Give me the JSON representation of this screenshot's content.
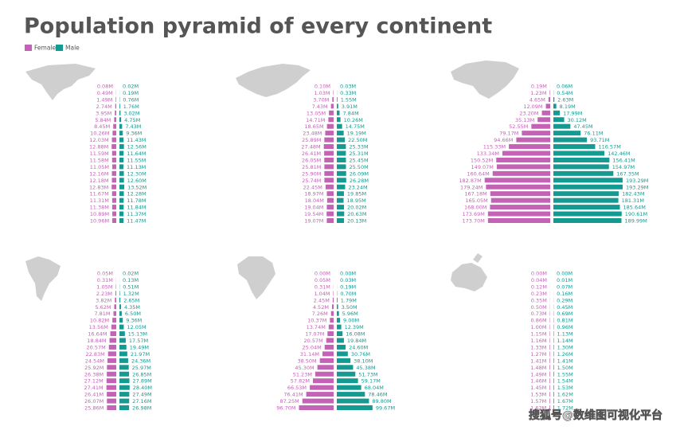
{
  "title": "Population pyramid of every continent",
  "watermark": "搜狐号@数维图可视化平台",
  "chart_data": [
    {
      "type": "pyramid",
      "xlim": [
        0,
        200
      ],
      "series": [
        {
          "name": "Female",
          "color": "#c462b6",
          "values": [
            0.08,
            0.49,
            1.49,
            2.74,
            3.95,
            5.84,
            8.45,
            10.26,
            12.03,
            12.88,
            11.59,
            11.58,
            11.05,
            12.16,
            12.18,
            12.83,
            11.67,
            11.31,
            11.38,
            10.89,
            10.96
          ],
          "value_labels": [
            "0.08M",
            "0.49M",
            "1.49M",
            "2.74M",
            "3.95M",
            "5.84M",
            "8.45M",
            "10.26M",
            "12.03M",
            "12.88M",
            "11.59M",
            "11.58M",
            "11.05M",
            "12.16M",
            "12.18M",
            "12.83M",
            "11.67M",
            "11.31M",
            "11.38M",
            "10.89M",
            "10.96M"
          ]
        },
        {
          "name": "Male",
          "color": "#159a92",
          "values": [
            0.02,
            0.19,
            0.76,
            1.76,
            3.02,
            4.75,
            7.43,
            9.36,
            11.43,
            12.56,
            11.64,
            11.55,
            11.13,
            12.3,
            12.6,
            13.52,
            12.28,
            11.78,
            11.84,
            11.37,
            11.47
          ],
          "value_labels": [
            "0.02M",
            "0.19M",
            "0.76M",
            "1.76M",
            "3.02M",
            "4.75M",
            "7.43M",
            "9.36M",
            "11.43M",
            "12.56M",
            "11.64M",
            "11.55M",
            "11.13M",
            "12.30M",
            "12.60M",
            "13.52M",
            "12.28M",
            "11.78M",
            "11.84M",
            "11.37M",
            "11.47M"
          ]
        }
      ]
    },
    {
      "type": "pyramid",
      "xlim": [
        0,
        200
      ],
      "series": [
        {
          "name": "Female",
          "color": "#c462b6",
          "values": [
            0.1,
            1.03,
            3.7,
            7.43,
            13.05,
            14.71,
            18.65,
            23.48,
            25.89,
            27.48,
            26.41,
            26.05,
            25.81,
            25.9,
            25.74,
            22.45,
            18.97,
            18.04,
            19.04,
            19.54,
            19.07
          ],
          "value_labels": [
            "0.10M",
            "1.03M",
            "3.70M",
            "7.43M",
            "13.05M",
            "14.71M",
            "18.65M",
            "23.48M",
            "25.89M",
            "27.48M",
            "26.41M",
            "26.05M",
            "25.81M",
            "25.90M",
            "25.74M",
            "22.45M",
            "18.97M",
            "18.04M",
            "19.04M",
            "19.54M",
            "19.07M"
          ]
        },
        {
          "name": "Male",
          "color": "#159a92",
          "values": [
            0.03,
            0.33,
            1.55,
            3.91,
            7.84,
            10.26,
            14.75,
            19.19,
            22.5,
            25.33,
            25.31,
            25.45,
            25.5,
            26.09,
            26.28,
            23.24,
            19.85,
            18.95,
            20.02,
            20.63,
            20.13
          ],
          "value_labels": [
            "0.03M",
            "0.33M",
            "1.55M",
            "3.91M",
            "7.84M",
            "10.26M",
            "14.75M",
            "19.19M",
            "22.50M",
            "25.33M",
            "25.31M",
            "25.45M",
            "25.50M",
            "26.09M",
            "26.28M",
            "23.24M",
            "19.85M",
            "18.95M",
            "20.02M",
            "20.63M",
            "20.13M"
          ]
        }
      ]
    },
    {
      "type": "pyramid",
      "xlim": [
        0,
        200
      ],
      "series": [
        {
          "name": "Female",
          "color": "#c462b6",
          "values": [
            0.19,
            1.23,
            4.65,
            12.09,
            23.2,
            35.13,
            52.55,
            79.17,
            94.66,
            115.33,
            133.34,
            150.52,
            149.07,
            160.64,
            182.87,
            179.24,
            167.18,
            165.05,
            168.0,
            173.69,
            173.7
          ],
          "value_labels": [
            "0.19M",
            "1.23M",
            "4.65M",
            "12.09M",
            "23.20M",
            "35.13M",
            "52.55M",
            "79.17M",
            "94.66M",
            "115.33M",
            "133.34M",
            "150.52M",
            "149.07M",
            "160.64M",
            "182.87M",
            "179.24M",
            "167.18M",
            "165.05M",
            "168.00M",
            "173.69M",
            "173.70M"
          ]
        },
        {
          "name": "Male",
          "color": "#159a92",
          "values": [
            0.06,
            0.54,
            2.63,
            8.19,
            17.99,
            30.12,
            47.45,
            76.11,
            93.71,
            116.57,
            142.46,
            156.41,
            154.97,
            167.35,
            193.29,
            193.29,
            182.43,
            181.31,
            185.64,
            190.61,
            189.99
          ],
          "value_labels": [
            "0.06M",
            "0.54M",
            "2.63M",
            "8.19M",
            "17.99M",
            "30.12M",
            "47.45M",
            "76.11M",
            "93.71M",
            "116.57M",
            "142.46M",
            "156.41M",
            "154.97M",
            "167.35M",
            "193.29M",
            "193.29M",
            "182.43M",
            "181.31M",
            "185.64M",
            "190.61M",
            "189.99M"
          ]
        }
      ]
    },
    {
      "type": "pyramid",
      "xlim": [
        0,
        200
      ],
      "series": [
        {
          "name": "Female",
          "color": "#c462b6",
          "values": [
            0.05,
            0.31,
            1.05,
            2.23,
            3.82,
            5.62,
            7.81,
            10.82,
            13.56,
            16.64,
            18.84,
            20.57,
            22.83,
            24.54,
            25.92,
            26.38,
            27.12,
            27.41,
            26.41,
            26.07,
            25.86
          ],
          "value_labels": [
            "0.05M",
            "0.31M",
            "1.05M",
            "2.23M",
            "3.82M",
            "5.62M",
            "7.81M",
            "10.82M",
            "13.56M",
            "16.64M",
            "18.84M",
            "20.57M",
            "22.83M",
            "24.54M",
            "25.92M",
            "26.38M",
            "27.12M",
            "27.41M",
            "26.41M",
            "26.07M",
            "25.86M"
          ]
        },
        {
          "name": "Male",
          "color": "#159a92",
          "values": [
            0.02,
            0.13,
            0.51,
            1.32,
            2.65,
            4.35,
            6.5,
            9.36,
            12.05,
            15.13,
            17.57,
            19.49,
            21.97,
            24.36,
            25.97,
            26.85,
            27.89,
            28.4,
            27.49,
            27.16,
            26.98
          ],
          "value_labels": [
            "0.02M",
            "0.13M",
            "0.51M",
            "1.32M",
            "2.65M",
            "4.35M",
            "6.50M",
            "9.36M",
            "12.05M",
            "15.13M",
            "17.57M",
            "19.49M",
            "21.97M",
            "24.36M",
            "25.97M",
            "26.85M",
            "27.89M",
            "28.40M",
            "27.49M",
            "27.16M",
            "26.98M"
          ]
        }
      ]
    },
    {
      "type": "pyramid",
      "xlim": [
        0,
        200
      ],
      "series": [
        {
          "name": "Female",
          "color": "#c462b6",
          "values": [
            0.0,
            0.05,
            0.31,
            1.04,
            2.45,
            4.52,
            7.26,
            10.37,
            13.74,
            17.07,
            20.57,
            25.04,
            31.14,
            38.5,
            45.3,
            51.23,
            57.82,
            66.53,
            76.41,
            87.25,
            96.7
          ],
          "value_labels": [
            "0.00M",
            "0.05M",
            "0.31M",
            "1.04M",
            "2.45M",
            "4.52M",
            "7.26M",
            "10.37M",
            "13.74M",
            "17.07M",
            "20.57M",
            "25.04M",
            "31.14M",
            "38.50M",
            "45.30M",
            "51.23M",
            "57.82M",
            "66.53M",
            "76.41M",
            "87.25M",
            "96.70M"
          ]
        },
        {
          "name": "Male",
          "color": "#159a92",
          "values": [
            0.0,
            0.03,
            0.19,
            0.7,
            1.79,
            3.5,
            5.96,
            9.0,
            12.39,
            16.08,
            19.84,
            24.6,
            30.76,
            38.1,
            45.38,
            51.73,
            59.17,
            68.04,
            78.46,
            89.8,
            99.67
          ],
          "value_labels": [
            "0.00M",
            "0.03M",
            "0.19M",
            "0.70M",
            "1.79M",
            "3.50M",
            "5.96M",
            "9.00M",
            "12.39M",
            "16.08M",
            "19.84M",
            "24.60M",
            "30.76M",
            "38.10M",
            "45.38M",
            "51.73M",
            "59.17M",
            "68.04M",
            "78.46M",
            "89.80M",
            "99.67M"
          ]
        }
      ]
    },
    {
      "type": "pyramid",
      "xlim": [
        0,
        200
      ],
      "series": [
        {
          "name": "Female",
          "color": "#c462b6",
          "values": [
            0.0,
            0.04,
            0.12,
            0.23,
            0.35,
            0.5,
            0.73,
            0.86,
            1.0,
            1.15,
            1.16,
            1.33,
            1.27,
            1.41,
            1.48,
            1.49,
            1.46,
            1.45,
            1.53,
            1.57,
            1.62
          ],
          "value_labels": [
            "0.00M",
            "0.04M",
            "0.12M",
            "0.23M",
            "0.35M",
            "0.50M",
            "0.73M",
            "0.86M",
            "1.00M",
            "1.15M",
            "1.16M",
            "1.33M",
            "1.27M",
            "1.41M",
            "1.48M",
            "1.49M",
            "1.46M",
            "1.45M",
            "1.53M",
            "1.57M",
            "1.62M"
          ]
        },
        {
          "name": "Male",
          "color": "#159a92",
          "values": [
            0.0,
            0.01,
            0.07,
            0.16,
            0.29,
            0.45,
            0.69,
            0.81,
            0.96,
            1.13,
            1.14,
            1.3,
            1.26,
            1.41,
            1.5,
            1.55,
            1.54,
            1.53,
            1.62,
            1.67,
            1.72
          ],
          "value_labels": [
            "0.00M",
            "0.01M",
            "0.07M",
            "0.16M",
            "0.29M",
            "0.45M",
            "0.69M",
            "0.81M",
            "0.96M",
            "1.13M",
            "1.14M",
            "1.30M",
            "1.26M",
            "1.41M",
            "1.50M",
            "1.55M",
            "1.54M",
            "1.53M",
            "1.62M",
            "1.67M",
            "1.72M"
          ]
        }
      ]
    }
  ]
}
